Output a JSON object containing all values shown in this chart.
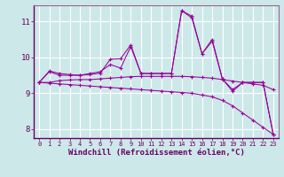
{
  "background_color": "#cde8e8",
  "grid_color": "#ffffff",
  "line_color": "#990099",
  "marker": "+",
  "xlabel": "Windchill (Refroidissement éolien,°C)",
  "xlim": [
    -0.5,
    23.5
  ],
  "ylim": [
    7.75,
    11.45
  ],
  "yticks": [
    8,
    9,
    10,
    11
  ],
  "xticks": [
    0,
    1,
    2,
    3,
    4,
    5,
    6,
    7,
    8,
    9,
    10,
    11,
    12,
    13,
    14,
    15,
    16,
    17,
    18,
    19,
    20,
    21,
    22,
    23
  ],
  "series": [
    [
      9.3,
      9.6,
      9.5,
      9.5,
      9.5,
      9.55,
      9.6,
      9.8,
      9.7,
      10.3,
      9.55,
      9.55,
      9.55,
      9.55,
      11.3,
      11.15,
      10.1,
      10.5,
      9.4,
      9.05,
      9.3,
      9.3,
      9.3,
      7.85
    ],
    [
      9.3,
      9.62,
      9.55,
      9.52,
      9.5,
      9.52,
      9.56,
      9.95,
      9.96,
      10.35,
      9.55,
      9.55,
      9.55,
      9.55,
      11.3,
      11.1,
      10.1,
      10.45,
      9.4,
      9.1,
      9.3,
      9.3,
      9.3,
      7.85
    ],
    [
      9.3,
      9.3,
      9.35,
      9.37,
      9.38,
      9.38,
      9.4,
      9.42,
      9.44,
      9.46,
      9.47,
      9.47,
      9.47,
      9.47,
      9.47,
      9.46,
      9.44,
      9.42,
      9.38,
      9.34,
      9.3,
      9.26,
      9.22,
      9.1
    ],
    [
      9.3,
      9.28,
      9.26,
      9.24,
      9.22,
      9.2,
      9.18,
      9.16,
      9.14,
      9.12,
      9.1,
      9.08,
      9.06,
      9.04,
      9.02,
      9.0,
      8.95,
      8.9,
      8.8,
      8.65,
      8.45,
      8.25,
      8.05,
      7.85
    ]
  ],
  "xlabel_fontsize": 6.5,
  "tick_fontsize": 6.5,
  "ylabel_fontsize": 7,
  "spine_color": "#7777aa",
  "axis_bg": "#cde8e8"
}
